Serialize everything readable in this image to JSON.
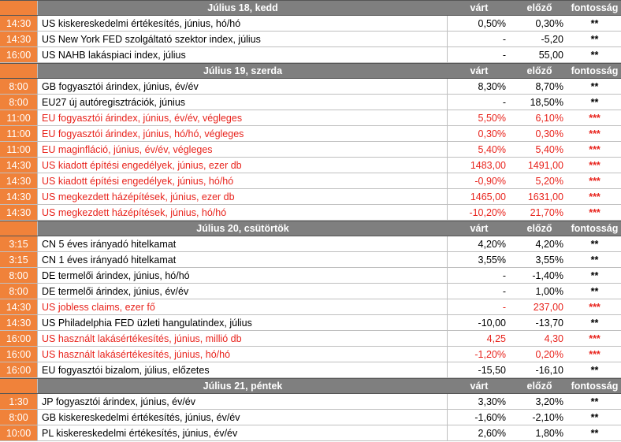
{
  "days": [
    {
      "title": "Július 18, kedd",
      "headers": {
        "expected": "várt",
        "previous": "előző",
        "importance": "fontosság"
      },
      "events": [
        {
          "time": "14:30",
          "name": "US kiskereskedelmi értékesítés, június, hó/hó",
          "expected": "0,50%",
          "previous": "0,30%",
          "importance": "**",
          "highlight": false
        },
        {
          "time": "14:30",
          "name": "US New York FED szolgáltató szektor index, július",
          "expected": "-",
          "previous": "-5,20",
          "importance": "**",
          "highlight": false
        },
        {
          "time": "16:00",
          "name": "US NAHB lakáspiaci index, július",
          "expected": "-",
          "previous": "55,00",
          "importance": "**",
          "highlight": false
        }
      ]
    },
    {
      "title": "Július 19, szerda",
      "headers": {
        "expected": "várt",
        "previous": "előző",
        "importance": "fontosság"
      },
      "events": [
        {
          "time": "8:00",
          "name": "GB fogyasztói árindex, június, év/év",
          "expected": "8,30%",
          "previous": "8,70%",
          "importance": "**",
          "highlight": false
        },
        {
          "time": "8:00",
          "name": "EU27 új autóregisztrációk, június",
          "expected": "-",
          "previous": "18,50%",
          "importance": "**",
          "highlight": false
        },
        {
          "time": "11:00",
          "name": "EU fogyasztói árindex, június, év/év, végleges",
          "expected": "5,50%",
          "previous": "6,10%",
          "importance": "***",
          "highlight": true
        },
        {
          "time": "11:00",
          "name": "EU fogyasztói árindex, június, hó/hó, végleges",
          "expected": "0,30%",
          "previous": "0,30%",
          "importance": "***",
          "highlight": true
        },
        {
          "time": "11:00",
          "name": "EU maginfláció, június, év/év, végleges",
          "expected": "5,40%",
          "previous": "5,40%",
          "importance": "***",
          "highlight": true
        },
        {
          "time": "14:30",
          "name": "US kiadott építési engedélyek, június, ezer db",
          "expected": "1483,00",
          "previous": "1491,00",
          "importance": "***",
          "highlight": true
        },
        {
          "time": "14:30",
          "name": "US kiadott építési engedélyek, június, hó/hó",
          "expected": "-0,90%",
          "previous": "5,20%",
          "importance": "***",
          "highlight": true
        },
        {
          "time": "14:30",
          "name": "US megkezdett házépítések, június, ezer db",
          "expected": "1465,00",
          "previous": "1631,00",
          "importance": "***",
          "highlight": true
        },
        {
          "time": "14:30",
          "name": "US megkezdett házépítések, június, hó/hó",
          "expected": "-10,20%",
          "previous": "21,70%",
          "importance": "***",
          "highlight": true
        }
      ]
    },
    {
      "title": "Július 20, csütörtök",
      "headers": {
        "expected": "várt",
        "previous": "előző",
        "importance": "fontosság"
      },
      "events": [
        {
          "time": "3:15",
          "name": "CN 5 éves irányadó hitelkamat",
          "expected": "4,20%",
          "previous": "4,20%",
          "importance": "**",
          "highlight": false
        },
        {
          "time": "3:15",
          "name": "CN 1 éves irányadó hitelkamat",
          "expected": "3,55%",
          "previous": "3,55%",
          "importance": "**",
          "highlight": false
        },
        {
          "time": "8:00",
          "name": "DE termelői árindex, június, hó/hó",
          "expected": "-",
          "previous": "-1,40%",
          "importance": "**",
          "highlight": false
        },
        {
          "time": "8:00",
          "name": "DE termelői árindex, június, év/év",
          "expected": "-",
          "previous": "1,00%",
          "importance": "**",
          "highlight": false
        },
        {
          "time": "14:30",
          "name": "US jobless claims, ezer fő",
          "expected": "-",
          "previous": "237,00",
          "importance": "***",
          "highlight": true
        },
        {
          "time": "14:30",
          "name": "US Philadelphia FED üzleti hangulatindex, július",
          "expected": "-10,00",
          "previous": "-13,70",
          "importance": "**",
          "highlight": false
        },
        {
          "time": "16:00",
          "name": "US használt lakásértékesítés, június, millió db",
          "expected": "4,25",
          "previous": "4,30",
          "importance": "***",
          "highlight": true
        },
        {
          "time": "16:00",
          "name": "US használt lakásértékesítés, június, hó/hó",
          "expected": "-1,20%",
          "previous": "0,20%",
          "importance": "***",
          "highlight": true
        },
        {
          "time": "16:00",
          "name": "EU fogyasztói bizalom, július, előzetes",
          "expected": "-15,50",
          "previous": "-16,10",
          "importance": "**",
          "highlight": false
        }
      ]
    },
    {
      "title": "Július 21, péntek",
      "headers": {
        "expected": "várt",
        "previous": "előző",
        "importance": "fontosság"
      },
      "events": [
        {
          "time": "1:30",
          "name": "JP fogyasztói árindex, június, év/év",
          "expected": "3,30%",
          "previous": "3,20%",
          "importance": "**",
          "highlight": false
        },
        {
          "time": "8:00",
          "name": "GB kiskereskedelmi értékesítés, június, év/év",
          "expected": "-1,60%",
          "previous": "-2,10%",
          "importance": "**",
          "highlight": false
        },
        {
          "time": "10:00",
          "name": "PL kiskereskedelmi értékesítés, június, év/év",
          "expected": "2,60%",
          "previous": "1,80%",
          "importance": "**",
          "highlight": false
        }
      ]
    }
  ]
}
